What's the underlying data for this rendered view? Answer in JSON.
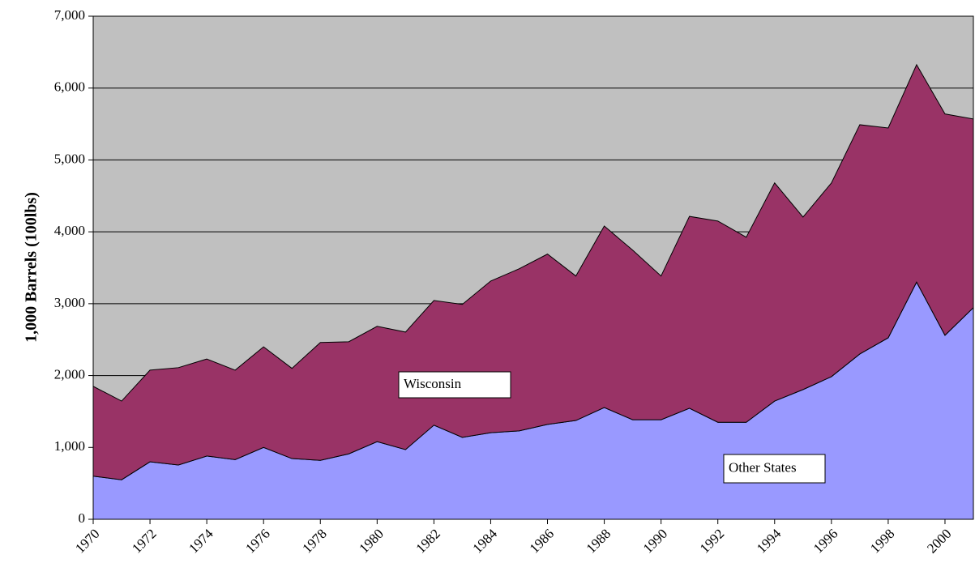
{
  "chart_data": {
    "type": "stacked-area",
    "y_label": "1,000 Barrels (100lbs)",
    "x": [
      1970,
      1971,
      1972,
      1973,
      1974,
      1975,
      1976,
      1977,
      1978,
      1979,
      1980,
      1981,
      1982,
      1983,
      1984,
      1985,
      1986,
      1987,
      1988,
      1989,
      1990,
      1991,
      1992,
      1993,
      1994,
      1995,
      1996,
      1997,
      1998,
      1999,
      2000,
      2001
    ],
    "series": [
      {
        "name": "Wisconsin",
        "color": "#9999ff",
        "values": [
          600,
          550,
          800,
          755,
          880,
          830,
          1000,
          845,
          820,
          910,
          1080,
          970,
          1310,
          1140,
          1205,
          1230,
          1320,
          1375,
          1555,
          1385,
          1385,
          1545,
          1350,
          1350,
          1645,
          1805,
          1985,
          2300,
          2525,
          3300,
          2560,
          2945
        ]
      },
      {
        "name": "Other States",
        "color": "#993366",
        "values": [
          1250,
          1095,
          1275,
          1355,
          1350,
          1245,
          1400,
          1255,
          1640,
          1560,
          1605,
          1635,
          1735,
          1850,
          2110,
          2255,
          2370,
          2010,
          2525,
          2360,
          2000,
          2670,
          2800,
          2575,
          3035,
          2400,
          2695,
          3190,
          2920,
          3025,
          3080,
          2625
        ]
      }
    ],
    "xlim": [
      1970,
      2001
    ],
    "xticks": [
      1970,
      1972,
      1974,
      1976,
      1978,
      1980,
      1982,
      1984,
      1986,
      1988,
      1990,
      1992,
      1994,
      1996,
      1998,
      2000
    ],
    "ylim": [
      0,
      7000
    ],
    "yticks": [
      0,
      {
        "value": 1000,
        "label": "1,000"
      },
      {
        "value": 2000,
        "label": "2,000"
      },
      {
        "value": 3000,
        "label": "3,000"
      },
      {
        "value": 4000,
        "label": "4,000"
      },
      {
        "value": 5000,
        "label": "5,000"
      },
      {
        "value": 6000,
        "label": "6,000"
      },
      {
        "value": 7000,
        "label": "7,000"
      }
    ],
    "grid": true,
    "plot_background": "#c0c0c0"
  }
}
